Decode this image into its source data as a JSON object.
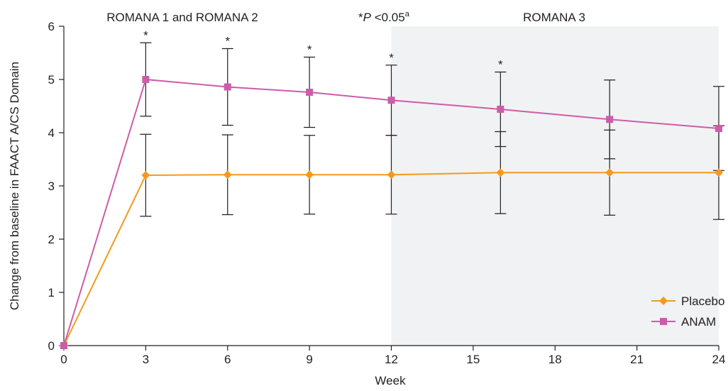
{
  "chart_data": {
    "type": "line",
    "title": "",
    "xlabel": "Week",
    "ylabel": "Change from baseline in FAACT A/CS Domain",
    "xlim": [
      0,
      24
    ],
    "ylim": [
      0,
      6
    ],
    "x_ticks": [
      0,
      3,
      6,
      9,
      12,
      15,
      18,
      21,
      24
    ],
    "y_ticks": [
      0,
      1,
      2,
      3,
      4,
      5,
      6
    ],
    "grid": false,
    "legend_position": "bottom-right",
    "shaded_region": {
      "from_x": 12,
      "to_x": 24,
      "color": "#f1f2f3"
    },
    "region_labels": {
      "left": "ROMANA 1 and ROMANA 2",
      "right": "ROMANA 3"
    },
    "significance_note": {
      "star": "*",
      "p": "P",
      "rest": " <0.05",
      "sup": "a"
    },
    "significance_x": [
      3,
      6,
      9,
      12,
      16
    ],
    "star_symbol": "*",
    "series": [
      {
        "name": "Placebo",
        "color": "#f39a1e",
        "marker": "diamond",
        "x": [
          0,
          3,
          6,
          9,
          12,
          16,
          20,
          24
        ],
        "values": [
          0,
          3.2,
          3.21,
          3.21,
          3.21,
          3.25,
          3.25,
          3.25
        ],
        "error": [
          0,
          0.77,
          0.75,
          0.74,
          0.74,
          0.77,
          0.8,
          0.88
        ]
      },
      {
        "name": "ANAM",
        "color": "#cd5ca8",
        "marker": "square",
        "x": [
          0,
          3,
          6,
          9,
          12,
          16,
          20,
          24
        ],
        "values": [
          0,
          5.0,
          4.86,
          4.76,
          4.61,
          4.44,
          4.25,
          4.08
        ],
        "error": [
          0,
          0.69,
          0.72,
          0.66,
          0.66,
          0.7,
          0.74,
          0.79
        ]
      }
    ]
  }
}
